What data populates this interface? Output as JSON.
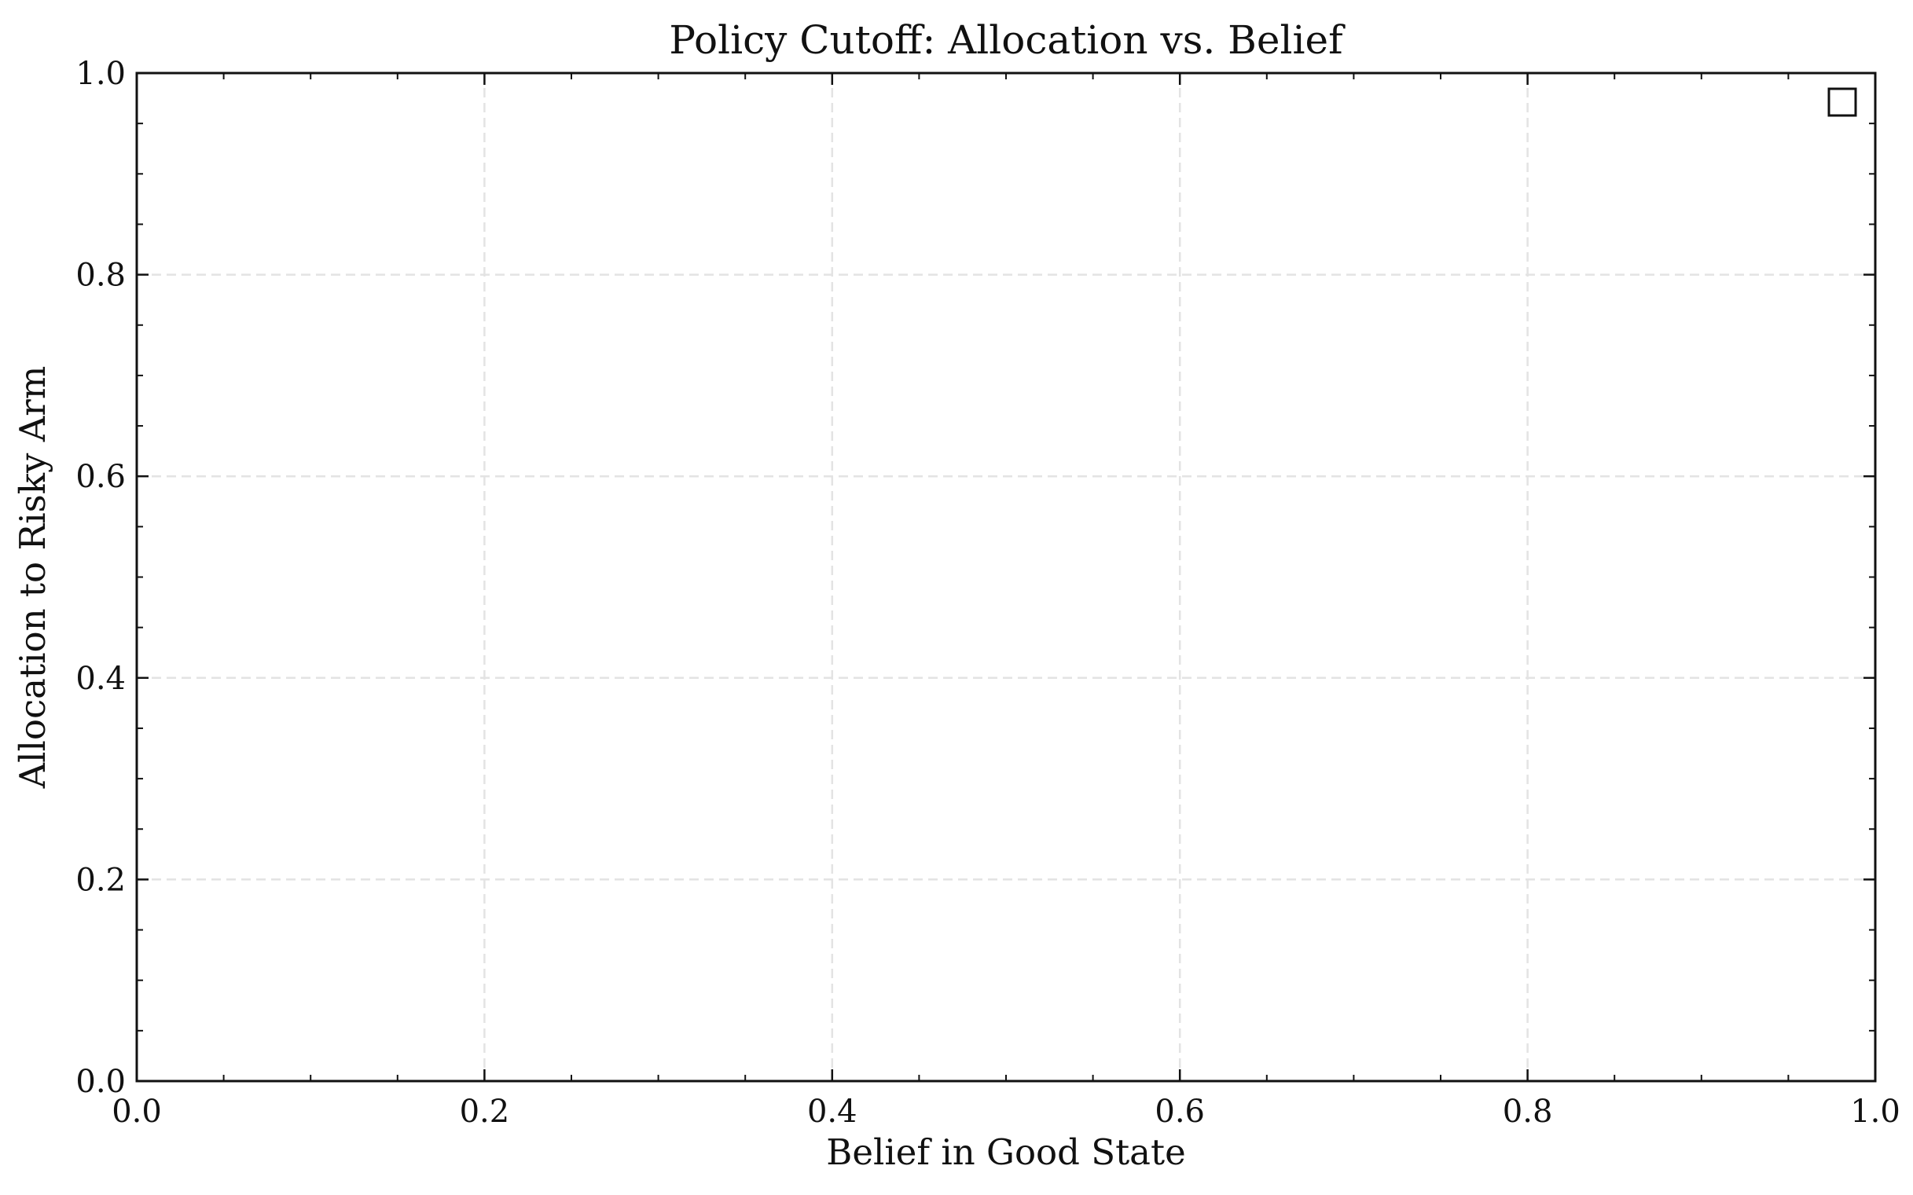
{
  "chart_data": {
    "type": "line",
    "title": "Policy Cutoff: Allocation vs. Belief",
    "xlabel": "Belief in Good State",
    "ylabel": "Allocation to Risky Arm",
    "xlim": [
      0.0,
      1.0
    ],
    "ylim": [
      0.0,
      1.0
    ],
    "xticks": [
      "0.0",
      "0.2",
      "0.4",
      "0.6",
      "0.8",
      "1.0"
    ],
    "yticks": [
      "0.0",
      "0.2",
      "0.4",
      "0.6",
      "0.8",
      "1.0"
    ],
    "x_minor_step": 0.05,
    "y_minor_step": 0.05,
    "grid": true,
    "grid_style": "dashed",
    "legend": "top-right",
    "legend_entries": [
      ""
    ],
    "series": []
  }
}
